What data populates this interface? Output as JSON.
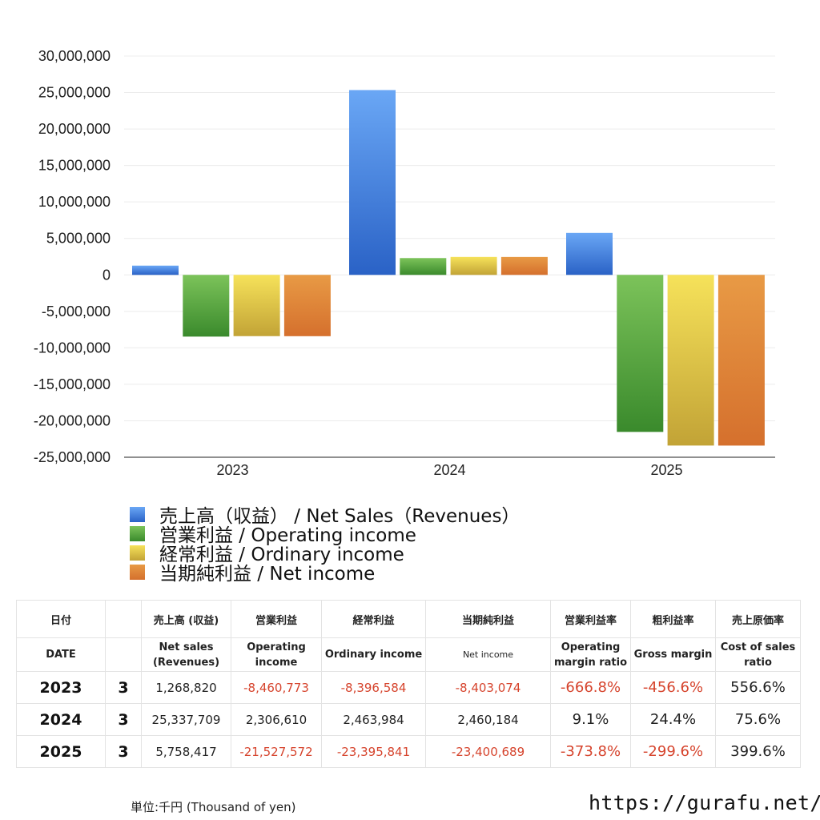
{
  "chart_data": {
    "type": "bar",
    "categories": [
      "2023",
      "2024",
      "2025"
    ],
    "series": [
      {
        "name": "売上高（収益） / Net Sales（Revenues）",
        "values": [
          1268820,
          25337709,
          5758417
        ],
        "color_top": "#6aa7f5",
        "color_bottom": "#2a62c6"
      },
      {
        "name": "営業利益 / Operating income",
        "values": [
          -8460773,
          2306610,
          -21527572
        ],
        "color_top": "#7cc35a",
        "color_bottom": "#3a8a2c"
      },
      {
        "name": "経常利益 / Ordinary income",
        "values": [
          -8396584,
          2463984,
          -23395841
        ],
        "color_top": "#f6e25a",
        "color_bottom": "#c2a336"
      },
      {
        "name": "当期純利益 / Net income",
        "values": [
          -8403074,
          2460184,
          -23400689
        ],
        "color_top": "#e89a45",
        "color_bottom": "#d5702d"
      }
    ],
    "ylim": [
      -25000000,
      30000000
    ],
    "yticks": [
      30000000,
      25000000,
      20000000,
      15000000,
      10000000,
      5000000,
      0,
      -5000000,
      -10000000,
      -15000000,
      -20000000,
      -25000000
    ],
    "ytick_labels": [
      "30,000,000",
      "25,000,000",
      "20,000,000",
      "15,000,000",
      "10,000,000",
      "5,000,000",
      "0",
      "-5,000,000",
      "-10,000,000",
      "-15,000,000",
      "-20,000,000",
      "-25,000,000"
    ],
    "grid": true,
    "legend_position": "bottom-left"
  },
  "legend": [
    {
      "label": "売上高（収益） / Net Sales（Revenues）",
      "color": "#4a86e0"
    },
    {
      "label": "営業利益 / Operating income",
      "color": "#5aa844"
    },
    {
      "label": "経常利益 / Ordinary income",
      "color": "#e8cc48"
    },
    {
      "label": "当期純利益 / Net income",
      "color": "#e07f36"
    }
  ],
  "table": {
    "headers": [
      "日付",
      "売上高 (収益)",
      "営業利益",
      "経常利益",
      "当期純利益",
      "営業利益率",
      "粗利益率",
      "売上原価率"
    ],
    "sub_headers": {
      "date": "DATE",
      "net_sales_1": "Net sales",
      "net_sales_2": "(Revenues)",
      "operating_1": "Operating",
      "operating_2": "income",
      "ordinary": "Ordinary income",
      "net_income": "Net income",
      "op_margin_1": "Operating",
      "op_margin_2": "margin ratio",
      "gross_margin": "Gross margin",
      "cost_1": "Cost of sales",
      "cost_2": "ratio"
    },
    "rows": [
      {
        "year": "2023",
        "month": "3",
        "net_sales": "1,268,820",
        "operating": "-8,460,773",
        "ordinary": "-8,396,584",
        "net_income": "-8,403,074",
        "op_margin": "-666.8%",
        "gross_margin": "-456.6%",
        "cost_ratio": "556.6%"
      },
      {
        "year": "2024",
        "month": "3",
        "net_sales": "25,337,709",
        "operating": "2,306,610",
        "ordinary": "2,463,984",
        "net_income": "2,460,184",
        "op_margin": "9.1%",
        "gross_margin": "24.4%",
        "cost_ratio": "75.6%"
      },
      {
        "year": "2025",
        "month": "3",
        "net_sales": "5,758,417",
        "operating": "-21,527,572",
        "ordinary": "-23,395,841",
        "net_income": "-23,400,689",
        "op_margin": "-373.8%",
        "gross_margin": "-299.6%",
        "cost_ratio": "399.6%"
      }
    ]
  },
  "footer": {
    "unit": "単位:千円 (Thousand of yen)",
    "site": "https://gurafu.net/"
  }
}
